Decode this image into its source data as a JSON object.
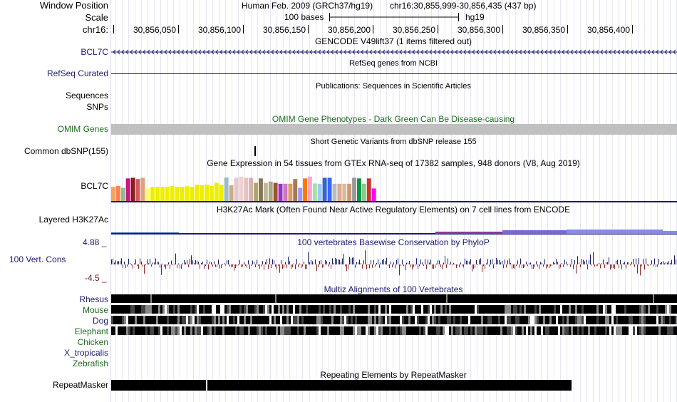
{
  "header": {
    "window_position_label": "Window Position",
    "assembly": "Human Feb. 2009 (GRCh37/hg19)",
    "position": "chr16:30,855,999-30,856,435 (437 bp)",
    "scale_label": "Scale",
    "scale_text": "100 bases",
    "scale_db": "hg19",
    "chrom_label": "chr16:",
    "ticks": [
      "30,856,050",
      "30,856,100",
      "30,856,150",
      "30,856,200",
      "30,856,250",
      "30,856,300",
      "30,856,350",
      "30,856,400"
    ]
  },
  "tracks": {
    "gencode": {
      "title": "GENCODE V49lift37 (1 items filtered out)",
      "label": "BCL7C"
    },
    "refseq": {
      "title": "RefSeq genes from NCBI",
      "label": "RefSeq Curated"
    },
    "publications": {
      "title": "Publications: Sequences in Scientific Articles",
      "label1": "Sequences",
      "label2": "SNPs"
    },
    "omim": {
      "title": "OMIM Gene Phenotypes - Dark Green Can Be Disease-causing",
      "label": "OMIM Genes"
    },
    "dbsnp": {
      "title": "Short Genetic Variants from dbSNP release 155",
      "label": "Common dbSNP(155)"
    },
    "gtex": {
      "title": "Gene Expression in 54 tissues from GTEx RNA-seq of 17382 samples, 948 donors (V8, Aug 2019)",
      "label": "BCL7C",
      "bars": [
        {
          "h": 0.45,
          "c": "#f4a460"
        },
        {
          "h": 0.48,
          "c": "#ff7f50"
        },
        {
          "h": 0.42,
          "c": "#8fbc8f"
        },
        {
          "h": 0.72,
          "c": "#c71585"
        },
        {
          "h": 0.74,
          "c": "#8b1a1a"
        },
        {
          "h": 0.7,
          "c": "#cd5c5c"
        },
        {
          "h": 0.74,
          "c": "#e0a080"
        },
        {
          "h": 0.4,
          "c": "#ffff66"
        },
        {
          "h": 0.45,
          "c": "#eeee00"
        },
        {
          "h": 0.45,
          "c": "#eeee00"
        },
        {
          "h": 0.45,
          "c": "#eeee00"
        },
        {
          "h": 0.45,
          "c": "#eeee00"
        },
        {
          "h": 0.48,
          "c": "#eeee00"
        },
        {
          "h": 0.45,
          "c": "#eeee00"
        },
        {
          "h": 0.45,
          "c": "#eeee00"
        },
        {
          "h": 0.47,
          "c": "#eeee00"
        },
        {
          "h": 0.45,
          "c": "#eeee00"
        },
        {
          "h": 0.52,
          "c": "#eeee00"
        },
        {
          "h": 0.5,
          "c": "#eeee00"
        },
        {
          "h": 0.52,
          "c": "#eeee00"
        },
        {
          "h": 0.48,
          "c": "#eeee00"
        },
        {
          "h": 0.58,
          "c": "#eeee00"
        },
        {
          "h": 0.52,
          "c": "#eeee00"
        },
        {
          "h": 0.75,
          "c": "#99bbcc"
        },
        {
          "h": 0.5,
          "c": "#ccaa88"
        },
        {
          "h": 0.74,
          "c": "#e6c8c8"
        },
        {
          "h": 0.78,
          "c": "#f0d0d0"
        },
        {
          "h": 0.74,
          "c": "#e8c0c0"
        },
        {
          "h": 0.74,
          "c": "#d8b0b0"
        },
        {
          "h": 0.58,
          "c": "#aaaa66"
        },
        {
          "h": 0.72,
          "c": "#8b7355"
        },
        {
          "h": 0.58,
          "c": "#bbbb99"
        },
        {
          "h": 0.62,
          "c": "#aaaa88"
        },
        {
          "h": 0.58,
          "c": "#a0522d"
        },
        {
          "h": 0.55,
          "c": "#9932cc"
        },
        {
          "h": 0.55,
          "c": "#cc77bb"
        },
        {
          "h": 0.55,
          "c": "#dd9966"
        },
        {
          "h": 0.7,
          "c": "#aa7755"
        },
        {
          "h": 0.42,
          "c": "#9999ff"
        },
        {
          "h": 0.72,
          "c": "#ff7700"
        },
        {
          "h": 0.78,
          "c": "#ffaacc"
        },
        {
          "h": 0.56,
          "c": "#aaddaa"
        },
        {
          "h": 0.55,
          "c": "#99ccee"
        },
        {
          "h": 0.74,
          "c": "#3366cc"
        },
        {
          "h": 0.74,
          "c": "#3366ff"
        },
        {
          "h": 0.55,
          "c": "#bbbbbb"
        },
        {
          "h": 0.55,
          "c": "#ddaa99"
        },
        {
          "h": 0.55,
          "c": "#ddbb99"
        },
        {
          "h": 0.55,
          "c": "#cc9977"
        },
        {
          "h": 0.74,
          "c": "#999999"
        },
        {
          "h": 0.72,
          "c": "#009944"
        },
        {
          "h": 0.55,
          "c": "#88cc88"
        },
        {
          "h": 0.72,
          "c": "#cc3333"
        },
        {
          "h": 0.4,
          "c": "#ff00ff"
        }
      ]
    },
    "h3k27ac": {
      "title": "H3K27Ac Mark (Often Found Near Active Regulatory Elements) on 7 cell lines from ENCODE",
      "label": "Layered H3K27Ac"
    },
    "cons": {
      "title": "100 vertebrates Basewise Conservation by PhyloP",
      "label": "100 Vert. Cons",
      "max": "4.88 _",
      "min": "-4.5 _"
    },
    "multiz": {
      "title": "Multiz Alignments of 100 Vertebrates",
      "species": [
        {
          "name": "Rhesus",
          "color": "#1b1b6e"
        },
        {
          "name": "Mouse",
          "color": "#1f6b1f"
        },
        {
          "name": "Dog",
          "color": "#1b1b6e"
        },
        {
          "name": "Elephant",
          "color": "#1f6b1f"
        },
        {
          "name": "Chicken",
          "color": "#1f6b1f"
        },
        {
          "name": "X_tropicalis",
          "color": "#1b1b6e"
        },
        {
          "name": "Zebrafish",
          "color": "#1f6b1f"
        }
      ]
    },
    "repeatmasker": {
      "title": "Repeating Elements by RepeatMasker",
      "label": "RepeatMasker"
    }
  }
}
